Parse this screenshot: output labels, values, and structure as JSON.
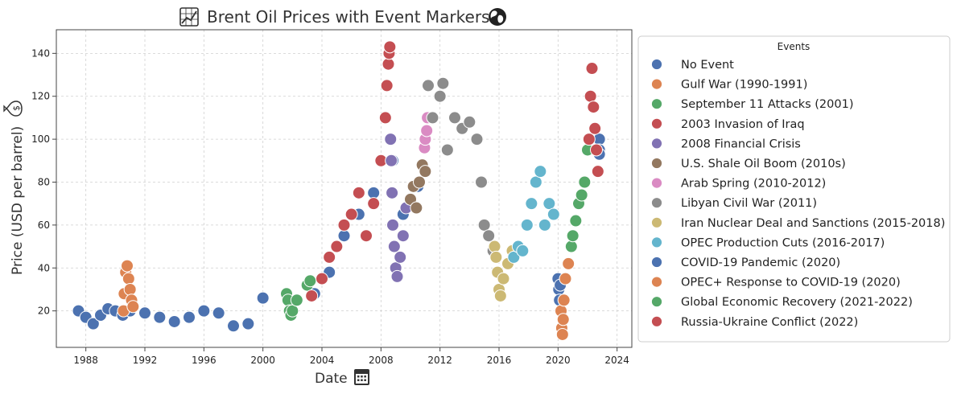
{
  "chart_data": {
    "type": "scatter",
    "title": "Brent Oil Prices with Event Markers",
    "title_icons": [
      "chart-icon",
      "globe-icon"
    ],
    "xlabel": "Date",
    "xlabel_icon": "calendar-icon",
    "ylabel": "Price (USD per barrel)",
    "ylabel_icon": "money-bag-icon",
    "xlim": [
      1986.0,
      2025.0
    ],
    "ylim": [
      3,
      151
    ],
    "x_ticks": [
      1988,
      1992,
      1996,
      2000,
      2004,
      2008,
      2012,
      2016,
      2020,
      2024
    ],
    "y_ticks": [
      20,
      40,
      60,
      80,
      100,
      120,
      140
    ],
    "grid": true,
    "legend": {
      "title": "Events",
      "placement": "outside-right"
    },
    "series": [
      {
        "name": "No Event",
        "color": "#4c72b0",
        "x": [
          1987.5,
          1988.0,
          1988.5,
          1989.0,
          1989.5,
          1990.0,
          1990.5,
          1991.0,
          1992.0,
          1993.0,
          1994.0,
          1995.0,
          1996.0,
          1997.0,
          1998.0,
          1999.0,
          2000.0,
          2003.5,
          2004.5,
          2005.5,
          2006.5,
          2007.5,
          2008.8,
          2009.5,
          2010.5,
          2022.8,
          2022.8,
          2022.8
        ],
        "y": [
          20,
          17,
          14,
          18,
          21,
          20,
          18,
          20,
          19,
          17,
          15,
          17,
          20,
          19,
          13,
          14,
          26,
          28,
          38,
          55,
          65,
          75,
          90,
          65,
          78,
          100,
          95,
          93
        ]
      },
      {
        "name": "Gulf War (1990-1991)",
        "color": "#dd8452",
        "x": [
          1990.55,
          1990.6,
          1990.7,
          1990.8,
          1990.9,
          1991.0,
          1991.1,
          1991.2
        ],
        "y": [
          20,
          28,
          38,
          41,
          35,
          30,
          25,
          22
        ]
      },
      {
        "name": "September 11 Attacks (2001)",
        "color": "#55a868",
        "x": [
          2001.6,
          2001.7,
          2001.8,
          2001.9,
          2002.0,
          2002.3,
          2003.0,
          2003.2
        ],
        "y": [
          28,
          25,
          20,
          18,
          20,
          25,
          32,
          34
        ]
      },
      {
        "name": "2003 Invasion of Iraq",
        "color": "#c44e52",
        "x": [
          2003.3,
          2004.0,
          2004.5,
          2005.0,
          2005.5,
          2006.0,
          2006.5,
          2007.0,
          2007.5,
          2008.0,
          2008.3,
          2008.4,
          2008.5,
          2008.55,
          2008.6
        ],
        "y": [
          27,
          35,
          45,
          50,
          60,
          65,
          75,
          55,
          70,
          90,
          110,
          125,
          135,
          140,
          143
        ]
      },
      {
        "name": "2008 Financial Crisis",
        "color": "#8172b3",
        "x": [
          2008.65,
          2008.7,
          2008.75,
          2008.8,
          2008.9,
          2009.0,
          2009.1,
          2009.3,
          2009.5,
          2009.7
        ],
        "y": [
          100,
          90,
          75,
          60,
          50,
          40,
          36,
          45,
          55,
          68
        ]
      },
      {
        "name": "U.S. Shale Oil Boom (2010s)",
        "color": "#937860",
        "x": [
          2010.0,
          2010.2,
          2010.4,
          2010.6,
          2010.8,
          2011.0
        ],
        "y": [
          72,
          78,
          68,
          80,
          88,
          85
        ]
      },
      {
        "name": "Arab Spring (2010-2012)",
        "color": "#da8bc3",
        "x": [
          2010.95,
          2011.0,
          2011.1,
          2011.15
        ],
        "y": [
          96,
          100,
          104,
          110
        ]
      },
      {
        "name": "Libyan Civil War (2011)",
        "color": "#8c8c8c",
        "x": [
          2011.2,
          2011.5,
          2012.0,
          2012.2,
          2012.5,
          2013.0,
          2013.5,
          2014.0,
          2014.5,
          2014.8,
          2015.0,
          2015.3,
          2015.6
        ],
        "y": [
          125,
          110,
          120,
          126,
          95,
          110,
          105,
          108,
          100,
          80,
          60,
          55,
          48
        ]
      },
      {
        "name": "Iran Nuclear Deal and Sanctions (2015-2018)",
        "color": "#ccb974",
        "x": [
          2015.7,
          2015.8,
          2015.9,
          2016.0,
          2016.1,
          2016.3,
          2016.6,
          2016.9
        ],
        "y": [
          50,
          45,
          38,
          30,
          27,
          35,
          42,
          48
        ]
      },
      {
        "name": "OPEC Production Cuts (2016-2017)",
        "color": "#64b5cd",
        "x": [
          2017.0,
          2017.3,
          2017.6,
          2017.9,
          2018.2,
          2018.5,
          2018.8,
          2019.1,
          2019.4,
          2019.7
        ],
        "y": [
          45,
          50,
          48,
          60,
          70,
          80,
          85,
          60,
          70,
          65
        ]
      },
      {
        "name": "COVID-19 Pandemic (2020)",
        "color": "#4c72b0",
        "x": [
          2020.0,
          2020.05,
          2020.1,
          2020.15
        ],
        "y": [
          35,
          30,
          25,
          32
        ]
      },
      {
        "name": "OPEC+ Response to COVID-19 (2020)",
        "color": "#dd8452",
        "x": [
          2020.2,
          2020.25,
          2020.3,
          2020.35,
          2020.4,
          2020.5,
          2020.7
        ],
        "y": [
          20,
          12,
          9,
          16,
          25,
          35,
          42
        ]
      },
      {
        "name": "Global Economic Recovery (2021-2022)",
        "color": "#55a868",
        "x": [
          2020.9,
          2021.0,
          2021.2,
          2021.4,
          2021.6,
          2021.8,
          2022.0
        ],
        "y": [
          50,
          55,
          62,
          70,
          74,
          80,
          95
        ]
      },
      {
        "name": "Russia-Ukraine Conflict (2022)",
        "color": "#c44e52",
        "x": [
          2022.1,
          2022.2,
          2022.3,
          2022.4,
          2022.5,
          2022.6,
          2022.7
        ],
        "y": [
          100,
          120,
          133,
          115,
          105,
          95,
          85
        ]
      }
    ]
  }
}
